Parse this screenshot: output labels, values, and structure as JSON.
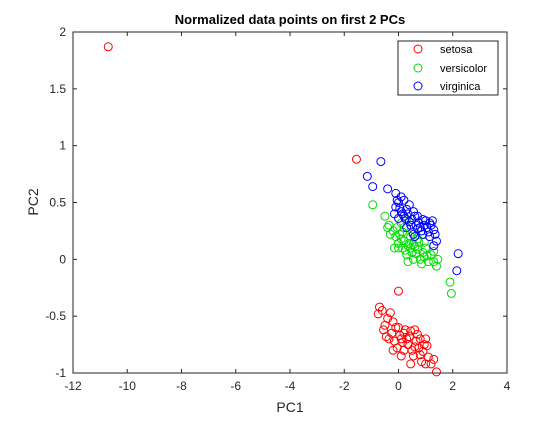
{
  "chart_data": {
    "type": "scatter",
    "title": "Normalized data points on first 2 PCs",
    "xlabel": "PC1",
    "ylabel": "PC2",
    "xlim": [
      -12,
      4
    ],
    "ylim": [
      -1,
      2
    ],
    "xticks": [
      -12,
      -10,
      -8,
      -6,
      -4,
      -2,
      0,
      2,
      4
    ],
    "yticks": [
      -1,
      -0.5,
      0,
      0.5,
      1,
      1.5,
      2
    ],
    "ytick_labels": [
      "-1",
      "-0.5",
      "0",
      "0.5",
      "1",
      "1.5",
      "2"
    ],
    "grid": false,
    "legend_position": "top-right",
    "series": [
      {
        "name": "setosa",
        "color": "#ff0000",
        "marker": "open-circle",
        "points": [
          [
            -10.7,
            1.87
          ],
          [
            -1.55,
            0.88
          ],
          [
            0.0,
            -0.28
          ],
          [
            -0.3,
            -0.47
          ],
          [
            -0.2,
            -0.55
          ],
          [
            -0.4,
            -0.52
          ],
          [
            -0.5,
            -0.58
          ],
          [
            -0.6,
            -0.45
          ],
          [
            -0.7,
            -0.42
          ],
          [
            -0.75,
            -0.48
          ],
          [
            -0.55,
            -0.62
          ],
          [
            -0.45,
            -0.68
          ],
          [
            -0.35,
            -0.7
          ],
          [
            -0.25,
            -0.65
          ],
          [
            -0.15,
            -0.72
          ],
          [
            -0.1,
            -0.6
          ],
          [
            0.0,
            -0.6
          ],
          [
            0.05,
            -0.67
          ],
          [
            0.1,
            -0.7
          ],
          [
            0.15,
            -0.73
          ],
          [
            0.2,
            -0.65
          ],
          [
            0.25,
            -0.62
          ],
          [
            0.3,
            -0.7
          ],
          [
            0.35,
            -0.75
          ],
          [
            0.4,
            -0.68
          ],
          [
            0.45,
            -0.63
          ],
          [
            0.5,
            -0.8
          ],
          [
            0.55,
            -0.85
          ],
          [
            0.6,
            -0.77
          ],
          [
            0.65,
            -0.72
          ],
          [
            0.7,
            -0.66
          ],
          [
            0.75,
            -0.78
          ],
          [
            0.8,
            -0.84
          ],
          [
            0.85,
            -0.9
          ],
          [
            0.9,
            -0.81
          ],
          [
            0.95,
            -0.75
          ],
          [
            1.0,
            -0.7
          ],
          [
            1.05,
            -0.76
          ],
          [
            1.1,
            -0.86
          ],
          [
            1.2,
            -0.92
          ],
          [
            1.3,
            -0.88
          ],
          [
            1.4,
            -0.99
          ],
          [
            1.0,
            -0.92
          ],
          [
            0.2,
            -0.8
          ],
          [
            -0.05,
            -0.78
          ],
          [
            0.1,
            -0.85
          ],
          [
            0.6,
            -0.62
          ],
          [
            0.8,
            -0.7
          ],
          [
            -0.2,
            -0.8
          ],
          [
            0.45,
            -0.92
          ]
        ]
      },
      {
        "name": "versicolor",
        "color": "#00dd00",
        "marker": "open-circle",
        "points": [
          [
            -0.95,
            0.48
          ],
          [
            -0.5,
            0.38
          ],
          [
            -0.4,
            0.28
          ],
          [
            -0.35,
            0.3
          ],
          [
            -0.3,
            0.22
          ],
          [
            -0.2,
            0.25
          ],
          [
            -0.1,
            0.2
          ],
          [
            -0.05,
            0.28
          ],
          [
            0.0,
            0.14
          ],
          [
            0.05,
            0.22
          ],
          [
            0.1,
            0.18
          ],
          [
            0.15,
            0.1
          ],
          [
            0.2,
            0.16
          ],
          [
            0.25,
            0.08
          ],
          [
            0.3,
            0.04
          ],
          [
            0.35,
            0.12
          ],
          [
            0.4,
            0.14
          ],
          [
            0.45,
            0.1
          ],
          [
            0.5,
            0.06
          ],
          [
            0.55,
            0.13
          ],
          [
            0.6,
            0.11
          ],
          [
            0.65,
            0.05
          ],
          [
            0.7,
            0.09
          ],
          [
            0.75,
            0.15
          ],
          [
            0.8,
            0.0
          ],
          [
            0.85,
            -0.04
          ],
          [
            0.9,
            0.06
          ],
          [
            0.95,
            0.02
          ],
          [
            1.0,
            0.1
          ],
          [
            1.05,
            0.03
          ],
          [
            1.1,
            -0.02
          ],
          [
            1.2,
            0.04
          ],
          [
            1.3,
            0.07
          ],
          [
            1.4,
            -0.06
          ],
          [
            1.45,
            0.0
          ],
          [
            1.9,
            -0.2
          ],
          [
            1.95,
            -0.3
          ],
          [
            0.3,
            0.35
          ],
          [
            0.1,
            0.32
          ],
          [
            -0.15,
            0.1
          ],
          [
            0.2,
            0.28
          ],
          [
            0.45,
            0.2
          ],
          [
            0.55,
            0.0
          ],
          [
            0.0,
            0.1
          ],
          [
            0.35,
            -0.02
          ],
          [
            0.7,
            0.18
          ],
          [
            1.3,
            -0.02
          ],
          [
            0.95,
            0.15
          ],
          [
            0.15,
            0.24
          ],
          [
            0.5,
            0.24
          ]
        ]
      },
      {
        "name": "virginica",
        "color": "#0000ff",
        "marker": "open-circle",
        "points": [
          [
            -0.65,
            0.86
          ],
          [
            -1.15,
            0.73
          ],
          [
            -0.95,
            0.64
          ],
          [
            -0.4,
            0.62
          ],
          [
            -0.1,
            0.58
          ],
          [
            -0.05,
            0.52
          ],
          [
            0.0,
            0.5
          ],
          [
            0.05,
            0.45
          ],
          [
            0.1,
            0.42
          ],
          [
            0.15,
            0.4
          ],
          [
            0.2,
            0.38
          ],
          [
            0.25,
            0.36
          ],
          [
            0.3,
            0.44
          ],
          [
            0.35,
            0.4
          ],
          [
            0.4,
            0.33
          ],
          [
            0.45,
            0.3
          ],
          [
            0.5,
            0.35
          ],
          [
            0.55,
            0.42
          ],
          [
            0.6,
            0.38
          ],
          [
            0.65,
            0.3
          ],
          [
            0.7,
            0.27
          ],
          [
            0.75,
            0.32
          ],
          [
            0.8,
            0.28
          ],
          [
            0.85,
            0.25
          ],
          [
            0.9,
            0.22
          ],
          [
            0.95,
            0.3
          ],
          [
            1.0,
            0.34
          ],
          [
            1.05,
            0.28
          ],
          [
            1.1,
            0.24
          ],
          [
            1.15,
            0.2
          ],
          [
            1.2,
            0.3
          ],
          [
            1.25,
            0.34
          ],
          [
            1.3,
            0.26
          ],
          [
            1.35,
            0.22
          ],
          [
            1.4,
            0.16
          ],
          [
            0.4,
            0.48
          ],
          [
            0.2,
            0.52
          ],
          [
            -0.15,
            0.4
          ],
          [
            0.1,
            0.55
          ],
          [
            0.55,
            0.22
          ],
          [
            0.7,
            0.38
          ],
          [
            0.9,
            0.35
          ],
          [
            1.15,
            0.32
          ],
          [
            0.3,
            0.28
          ],
          [
            0.0,
            0.36
          ],
          [
            -0.1,
            0.46
          ],
          [
            0.6,
            0.2
          ],
          [
            1.3,
            0.12
          ],
          [
            2.2,
            0.05
          ],
          [
            2.15,
            -0.1
          ]
        ]
      }
    ]
  }
}
